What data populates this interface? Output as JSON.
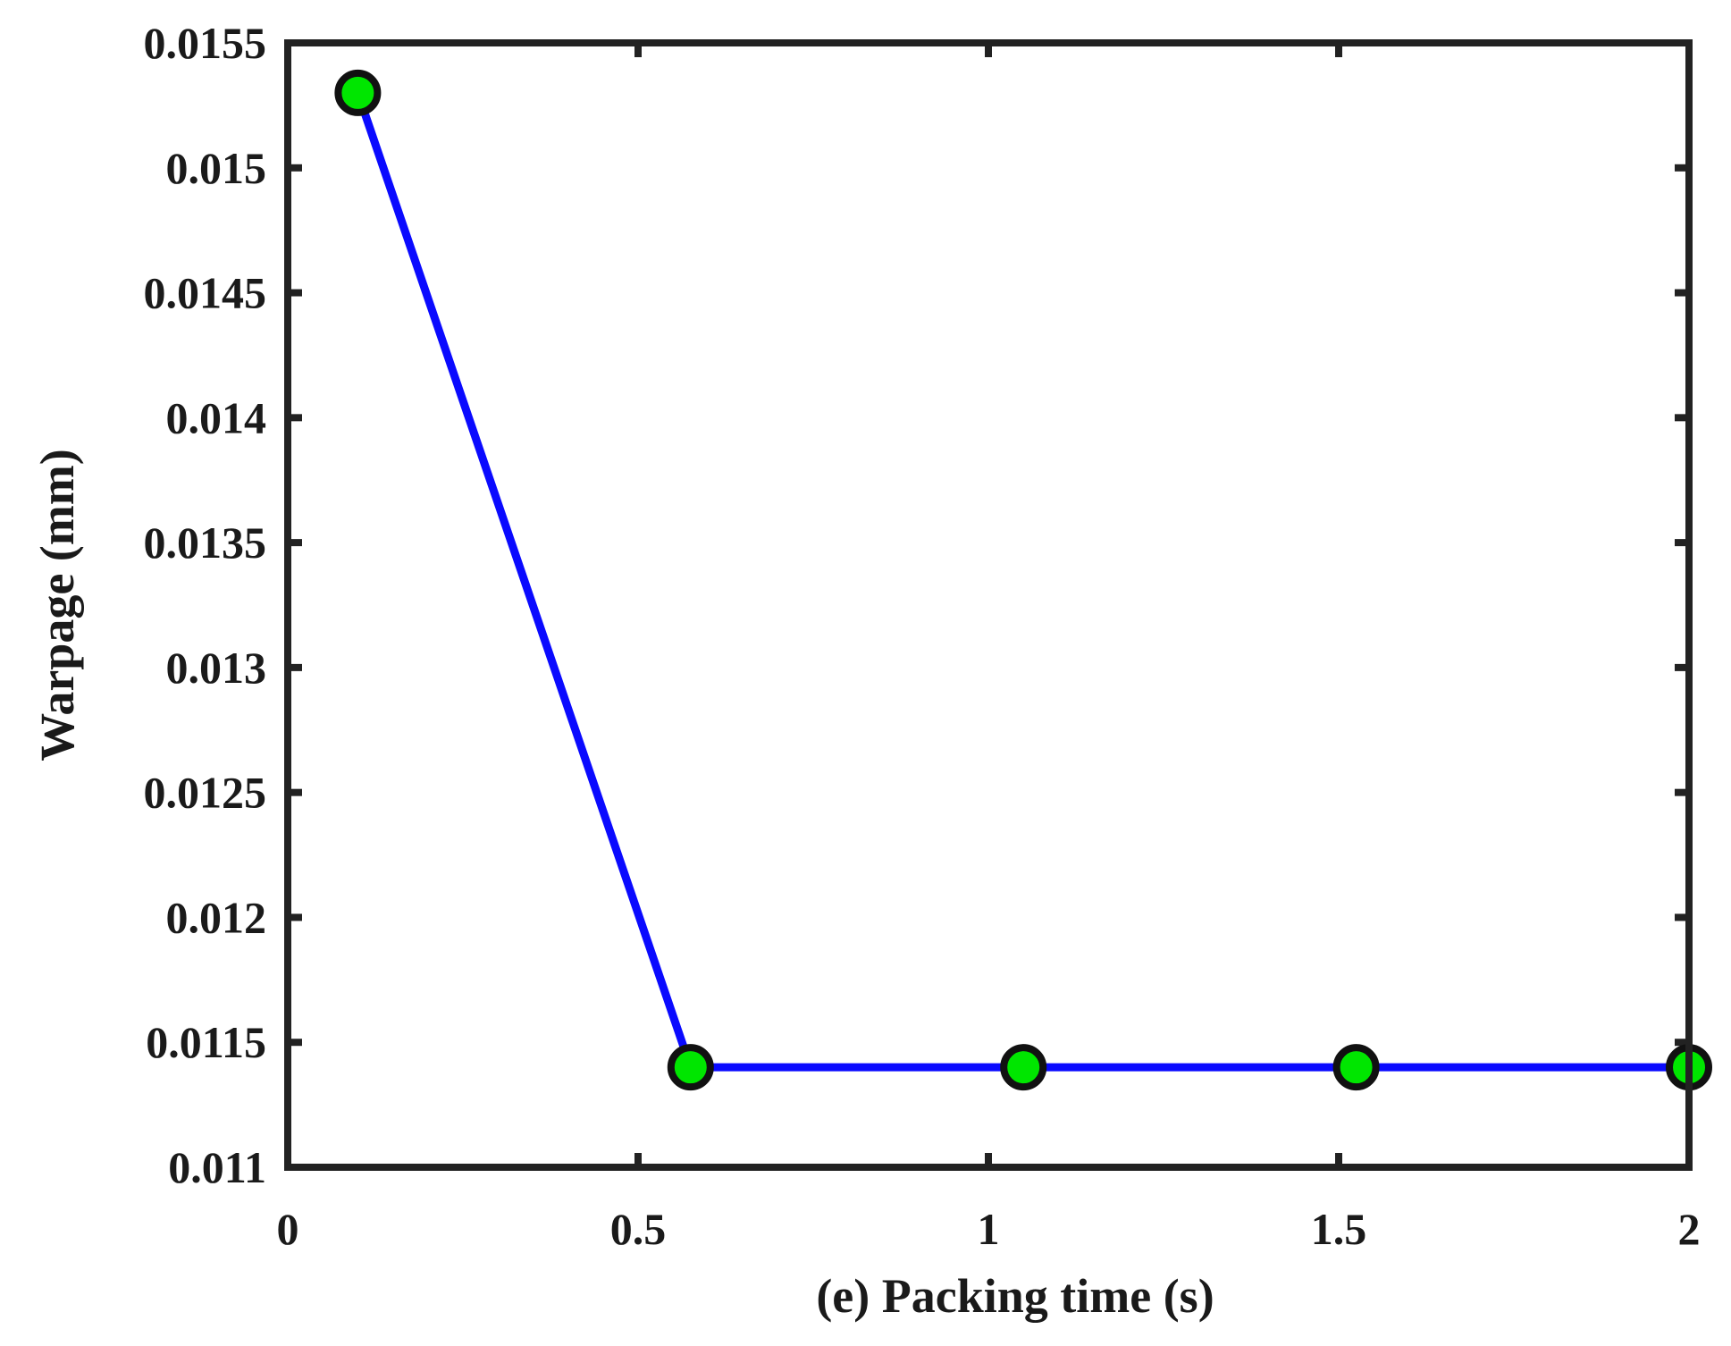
{
  "chart_data": {
    "type": "line",
    "title": "",
    "xlabel": "(e)  Packing time (s)",
    "ylabel": "Warpage (mm)",
    "xlim": [
      0,
      2
    ],
    "ylim": [
      0.011,
      0.0155
    ],
    "x_ticks": [
      "0",
      "0.5",
      "1",
      "1.5",
      "2"
    ],
    "y_ticks": [
      "0.011",
      "0.0115",
      "0.012",
      "0.0125",
      "0.013",
      "0.0135",
      "0.014",
      "0.0145",
      "0.015",
      "0.0155"
    ],
    "grid": false,
    "series": [
      {
        "x": [
          0.1,
          0.575,
          1.05,
          1.525,
          2.0
        ],
        "y": [
          0.0153,
          0.0114,
          0.0114,
          0.0114,
          0.0114
        ],
        "line_color": "#0a0aff",
        "marker_color": "#00e600"
      }
    ]
  }
}
